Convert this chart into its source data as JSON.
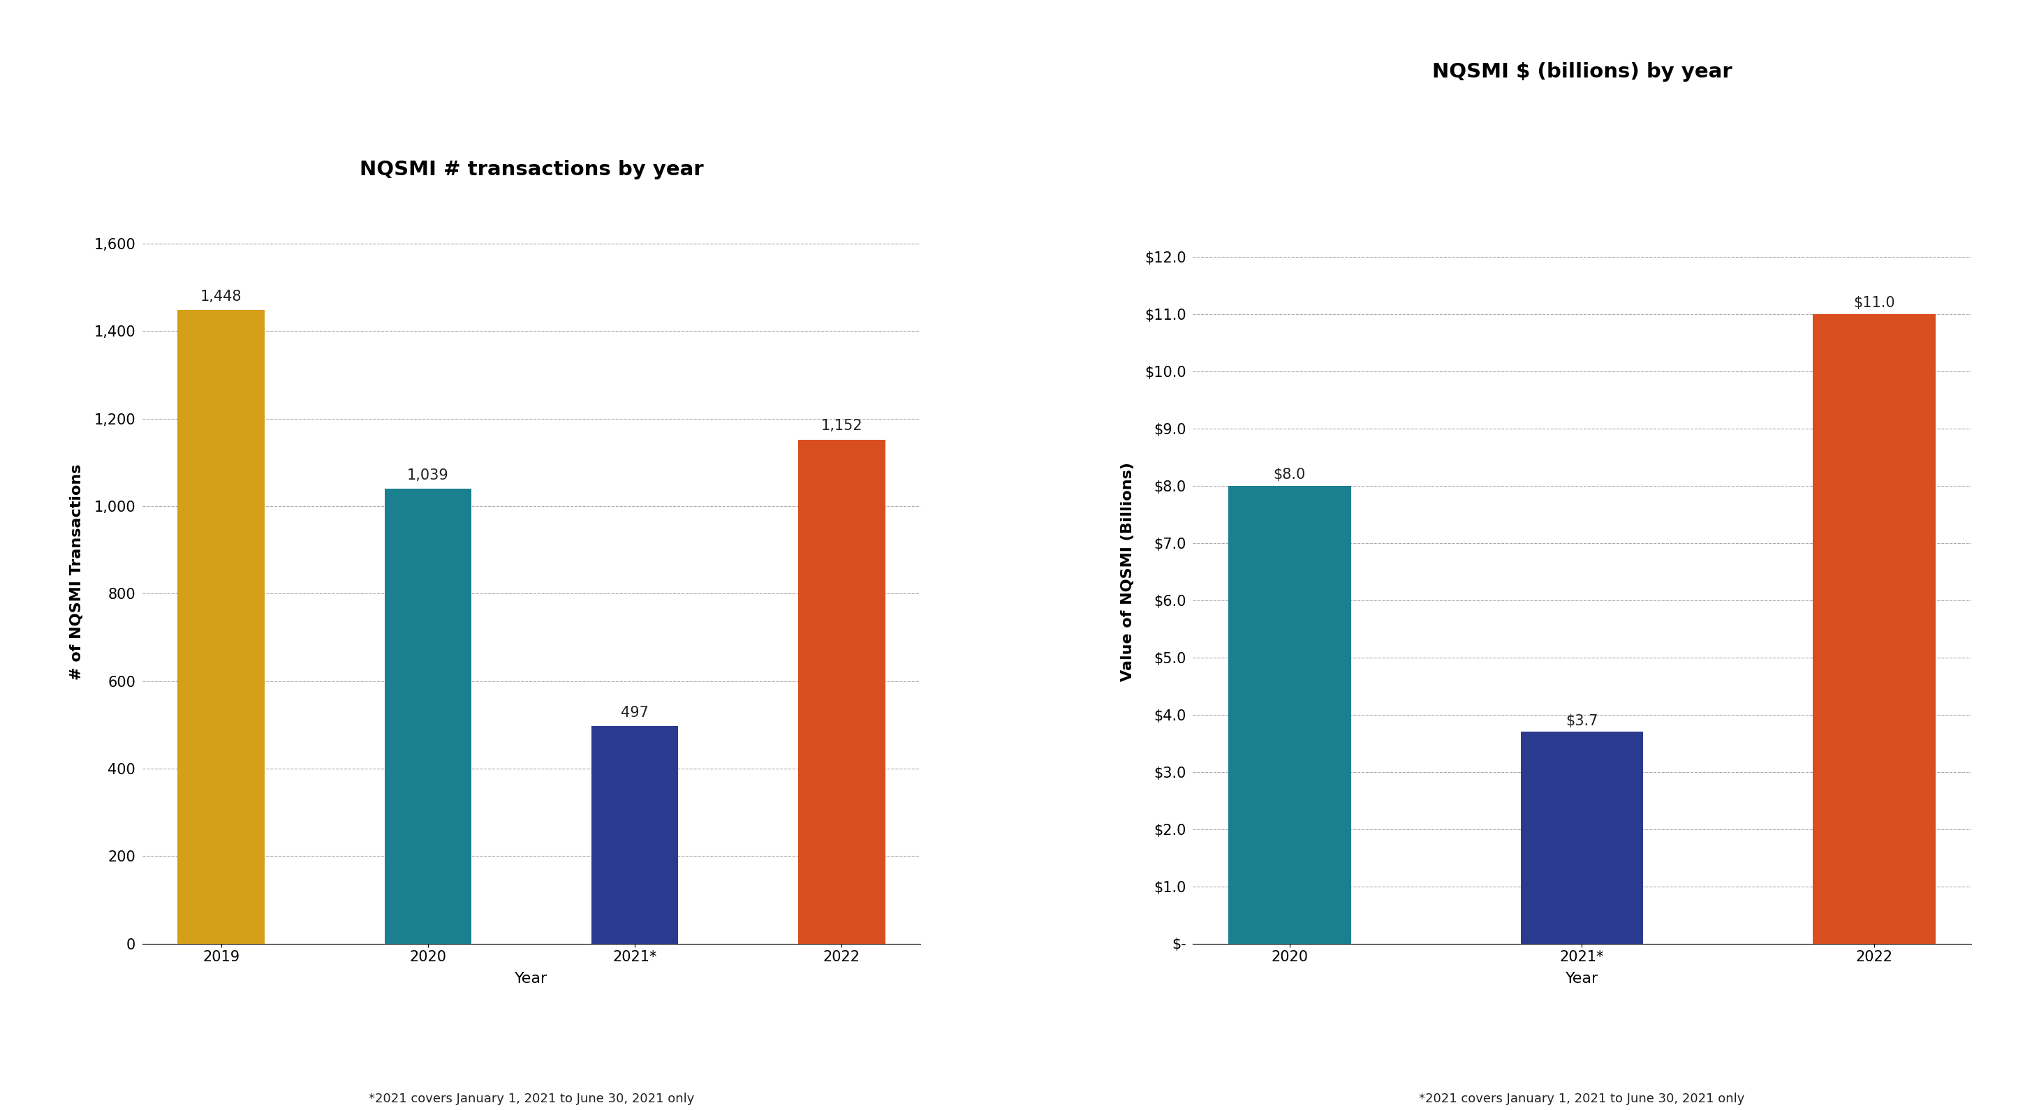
{
  "chart1": {
    "title": "NQSMI # transactions by year",
    "categories": [
      "2019",
      "2020",
      "2021*",
      "2022"
    ],
    "values": [
      1448,
      1039,
      497,
      1152
    ],
    "bar_colors": [
      "#D4A017",
      "#1A7F8E",
      "#2B3A8F",
      "#D94E1F"
    ],
    "ylabel": "# of NQSMI Transactions",
    "xlabel": "Year",
    "footnote": "*2021 covers January 1, 2021 to June 30, 2021 only",
    "ylim": [
      0,
      1700
    ],
    "yticks": [
      0,
      200,
      400,
      600,
      800,
      1000,
      1200,
      1400,
      1600
    ]
  },
  "chart2": {
    "title": "NQSMI $ (billions) by year",
    "categories": [
      "2020",
      "2021*",
      "2022"
    ],
    "values": [
      8.0,
      3.7,
      11.0
    ],
    "bar_colors": [
      "#1A7F8E",
      "#2B3A8F",
      "#D94E1F"
    ],
    "ylabel": "Value of NQSMI (Billions)",
    "xlabel": "Year",
    "footnote": "*2021 covers January 1, 2021 to June 30, 2021 only",
    "ylim": [
      0,
      13.0
    ],
    "yticks": [
      0,
      1.0,
      2.0,
      3.0,
      4.0,
      5.0,
      6.0,
      7.0,
      8.0,
      9.0,
      10.0,
      11.0,
      12.0
    ],
    "ytick_labels": [
      "$-",
      "$1.0",
      "$2.0",
      "$3.0",
      "$4.0",
      "$5.0",
      "$6.0",
      "$7.0",
      "$8.0",
      "$9.0",
      "$10.0",
      "$11.0",
      "$12.0"
    ]
  },
  "background_color": "#FFFFFF",
  "bar_width": 0.42,
  "title_fontsize": 21,
  "label_fontsize": 16,
  "tick_fontsize": 15,
  "annotation_fontsize": 15,
  "footnote_fontsize": 13
}
